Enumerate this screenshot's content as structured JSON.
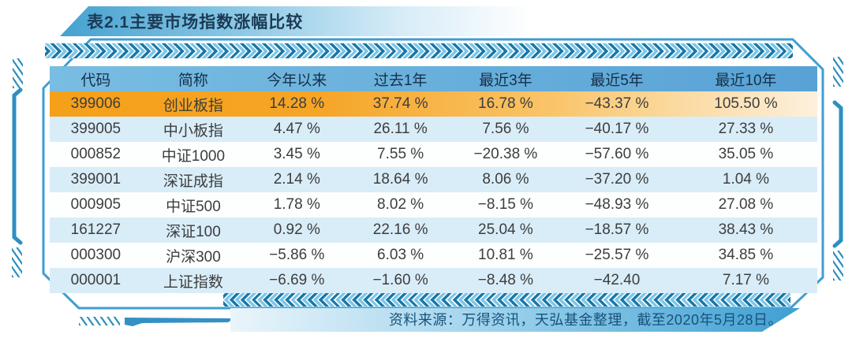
{
  "chart_data": {
    "type": "table",
    "title": "表2.1主要市场指数涨幅比较",
    "columns": [
      "代码",
      "简称",
      "今年以来",
      "过去1年",
      "最近3年",
      "最近5年",
      "最近10年"
    ],
    "rows": [
      [
        "399006",
        "创业板指",
        "14.28 %",
        "37.74 %",
        "16.78 %",
        "−43.37 %",
        "105.50 %"
      ],
      [
        "399005",
        "中小板指",
        "4.47 %",
        "26.11 %",
        "7.56 %",
        "−40.17 %",
        "27.33 %"
      ],
      [
        "000852",
        "中证1000",
        "3.45 %",
        "7.55 %",
        "−20.38 %",
        "−57.60 %",
        "35.05 %"
      ],
      [
        "399001",
        "深证成指",
        "2.14 %",
        "18.64 %",
        "8.06 %",
        "−37.20 %",
        "1.04 %"
      ],
      [
        "000905",
        "中证500",
        "1.78 %",
        "8.02 %",
        "−8.15 %",
        "−48.93 %",
        "27.08 %"
      ],
      [
        "161227",
        "深证100",
        "0.92 %",
        "22.16 %",
        "25.04 %",
        "−18.57 %",
        "38.43 %"
      ],
      [
        "000300",
        "沪深300",
        "−5.86 %",
        "6.03 %",
        "10.81 %",
        "−25.57 %",
        "34.85 %"
      ],
      [
        "000001",
        "上证指数",
        "−6.69 %",
        "−1.60 %",
        "−8.48 %",
        "−42.40",
        "7.17 %"
      ]
    ],
    "highlight_row": 0,
    "source": "资料来源：万得资讯，天弘基金整理，截至2020年5月28日。",
    "layout": {
      "header_position": "top",
      "grid": false
    }
  },
  "palette": {
    "frame_blue": "#3e9ed2",
    "bracket_blue": "#2e8fc0",
    "header_blue_left": "#79bde2",
    "header_blue_right": "#58a2d5",
    "highlight_orange": "#f5a019",
    "row_alt_blue": "#d9edf8",
    "chevron_dark": "#1878aa",
    "chevron_light": "#7ec6e6",
    "title_text": "#1c3a55",
    "footer_text": "#17527c"
  }
}
